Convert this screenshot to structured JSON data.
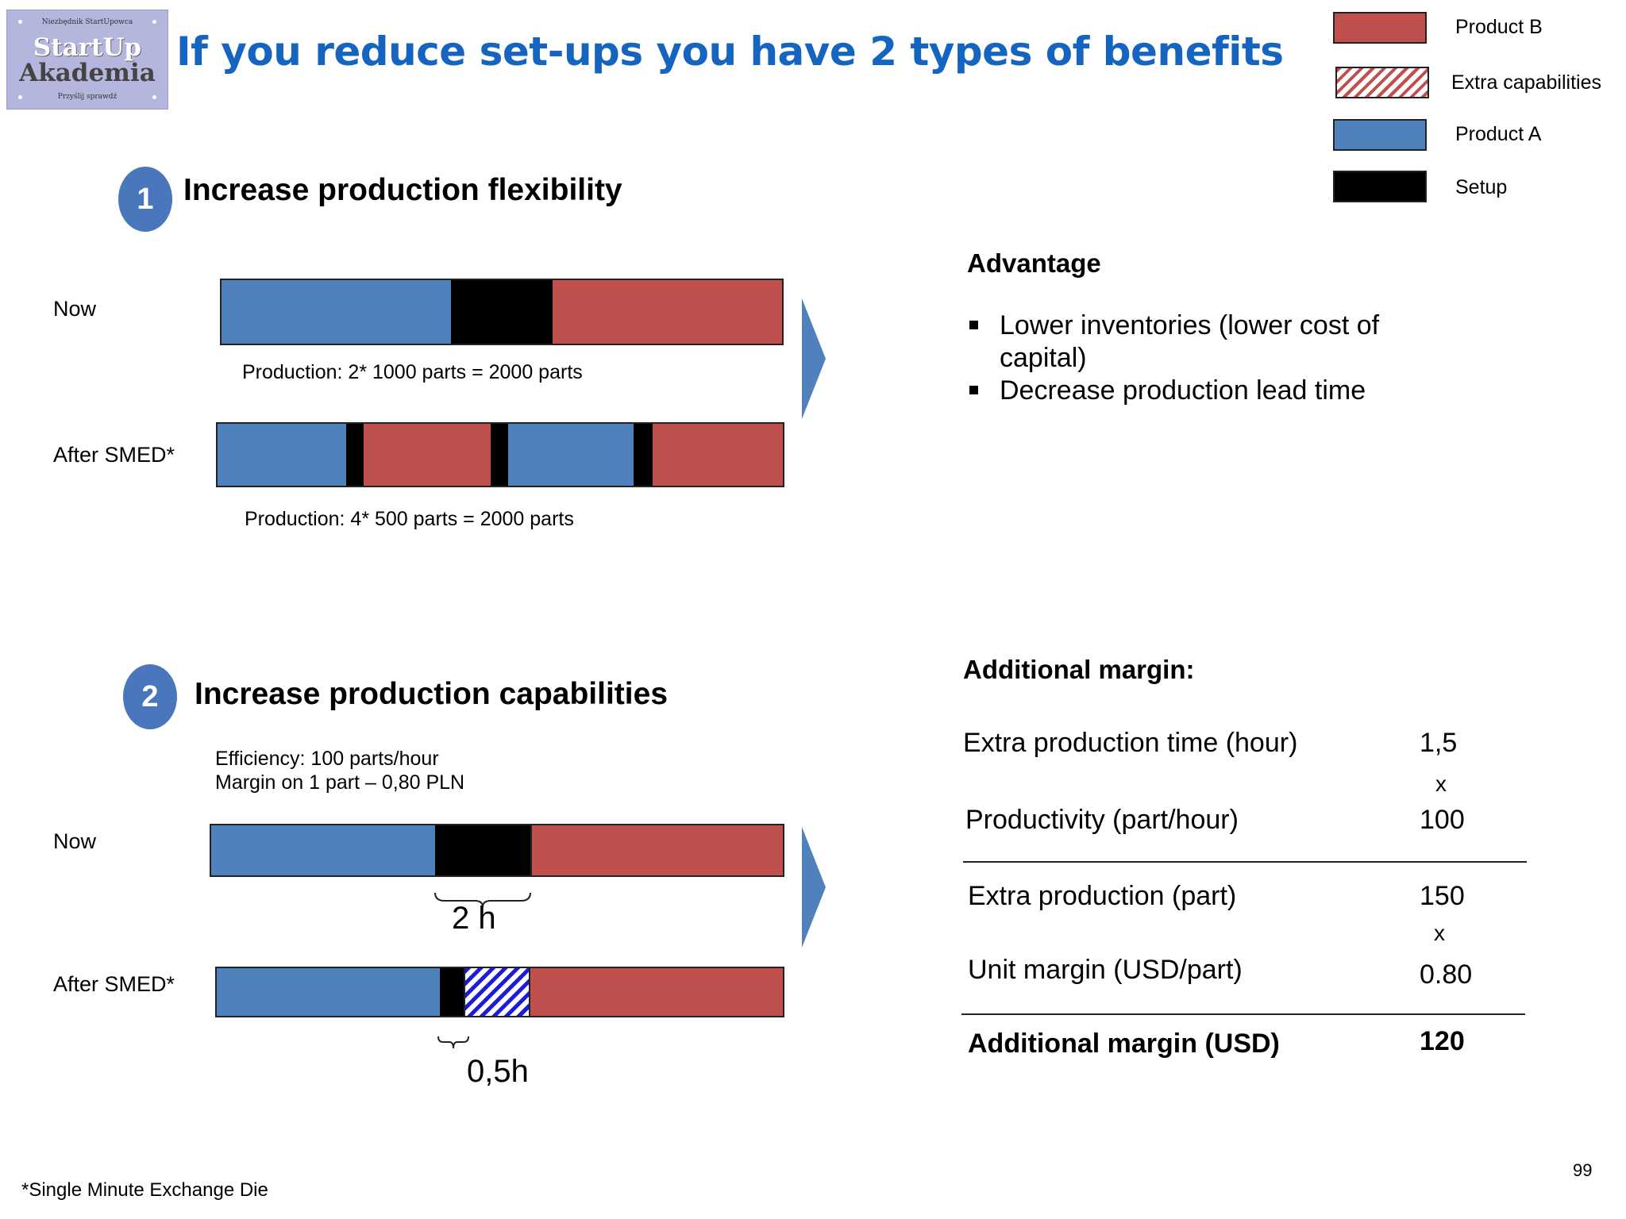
{
  "logo": {
    "top_text": "Niezbędnik StartUpowca",
    "word1": "StartUp",
    "word2": "Akademia",
    "bottom_text": "Przyślij sprawdź"
  },
  "title": "If you reduce set-ups you have 2 types of benefits",
  "legend": [
    {
      "label": "Product B",
      "color": "#c0504d",
      "pattern": "solid"
    },
    {
      "label": "Extra capabilities",
      "color": "#c0504d",
      "pattern": "hatched"
    },
    {
      "label": "Product A",
      "color": "#4f81bd",
      "pattern": "solid"
    },
    {
      "label": "Setup",
      "color": "#000000",
      "pattern": "solid"
    }
  ],
  "section1": {
    "number": "1",
    "title": "Increase production flexibility",
    "now_label": "Now",
    "after_label": "After SMED*",
    "now_note": "Production: 2* 1000 parts = 2000 parts",
    "after_note": "Production: 4* 500 parts = 2000 parts",
    "advantage": {
      "heading": "Advantage",
      "bullets": [
        "Lower inventories (lower cost of capital)",
        "Decrease production lead time"
      ]
    }
  },
  "section2": {
    "number": "2",
    "title": "Increase production capabilities",
    "info_line1": "Efficiency: 100 parts/hour",
    "info_line2": "Margin on 1 part – 0,80 PLN",
    "now_label": "Now",
    "after_label": "After SMED*",
    "now_setup": "2 h",
    "after_setup": "0,5h",
    "margin": {
      "heading": "Additional margin:",
      "rows": [
        {
          "label": "Extra production time (hour)",
          "value": "1,5"
        },
        {
          "label": "Productivity (part/hour)",
          "value": "100"
        },
        {
          "label": "Extra production (part)",
          "value": "150"
        },
        {
          "label": "Unit margin (USD/part)",
          "value": "0.80"
        }
      ],
      "op1": "x",
      "op2": "x",
      "total_label": "Additional margin (USD)",
      "total_value": "120"
    }
  },
  "footnote": "*Single Minute Exchange Die",
  "page_number": "99"
}
